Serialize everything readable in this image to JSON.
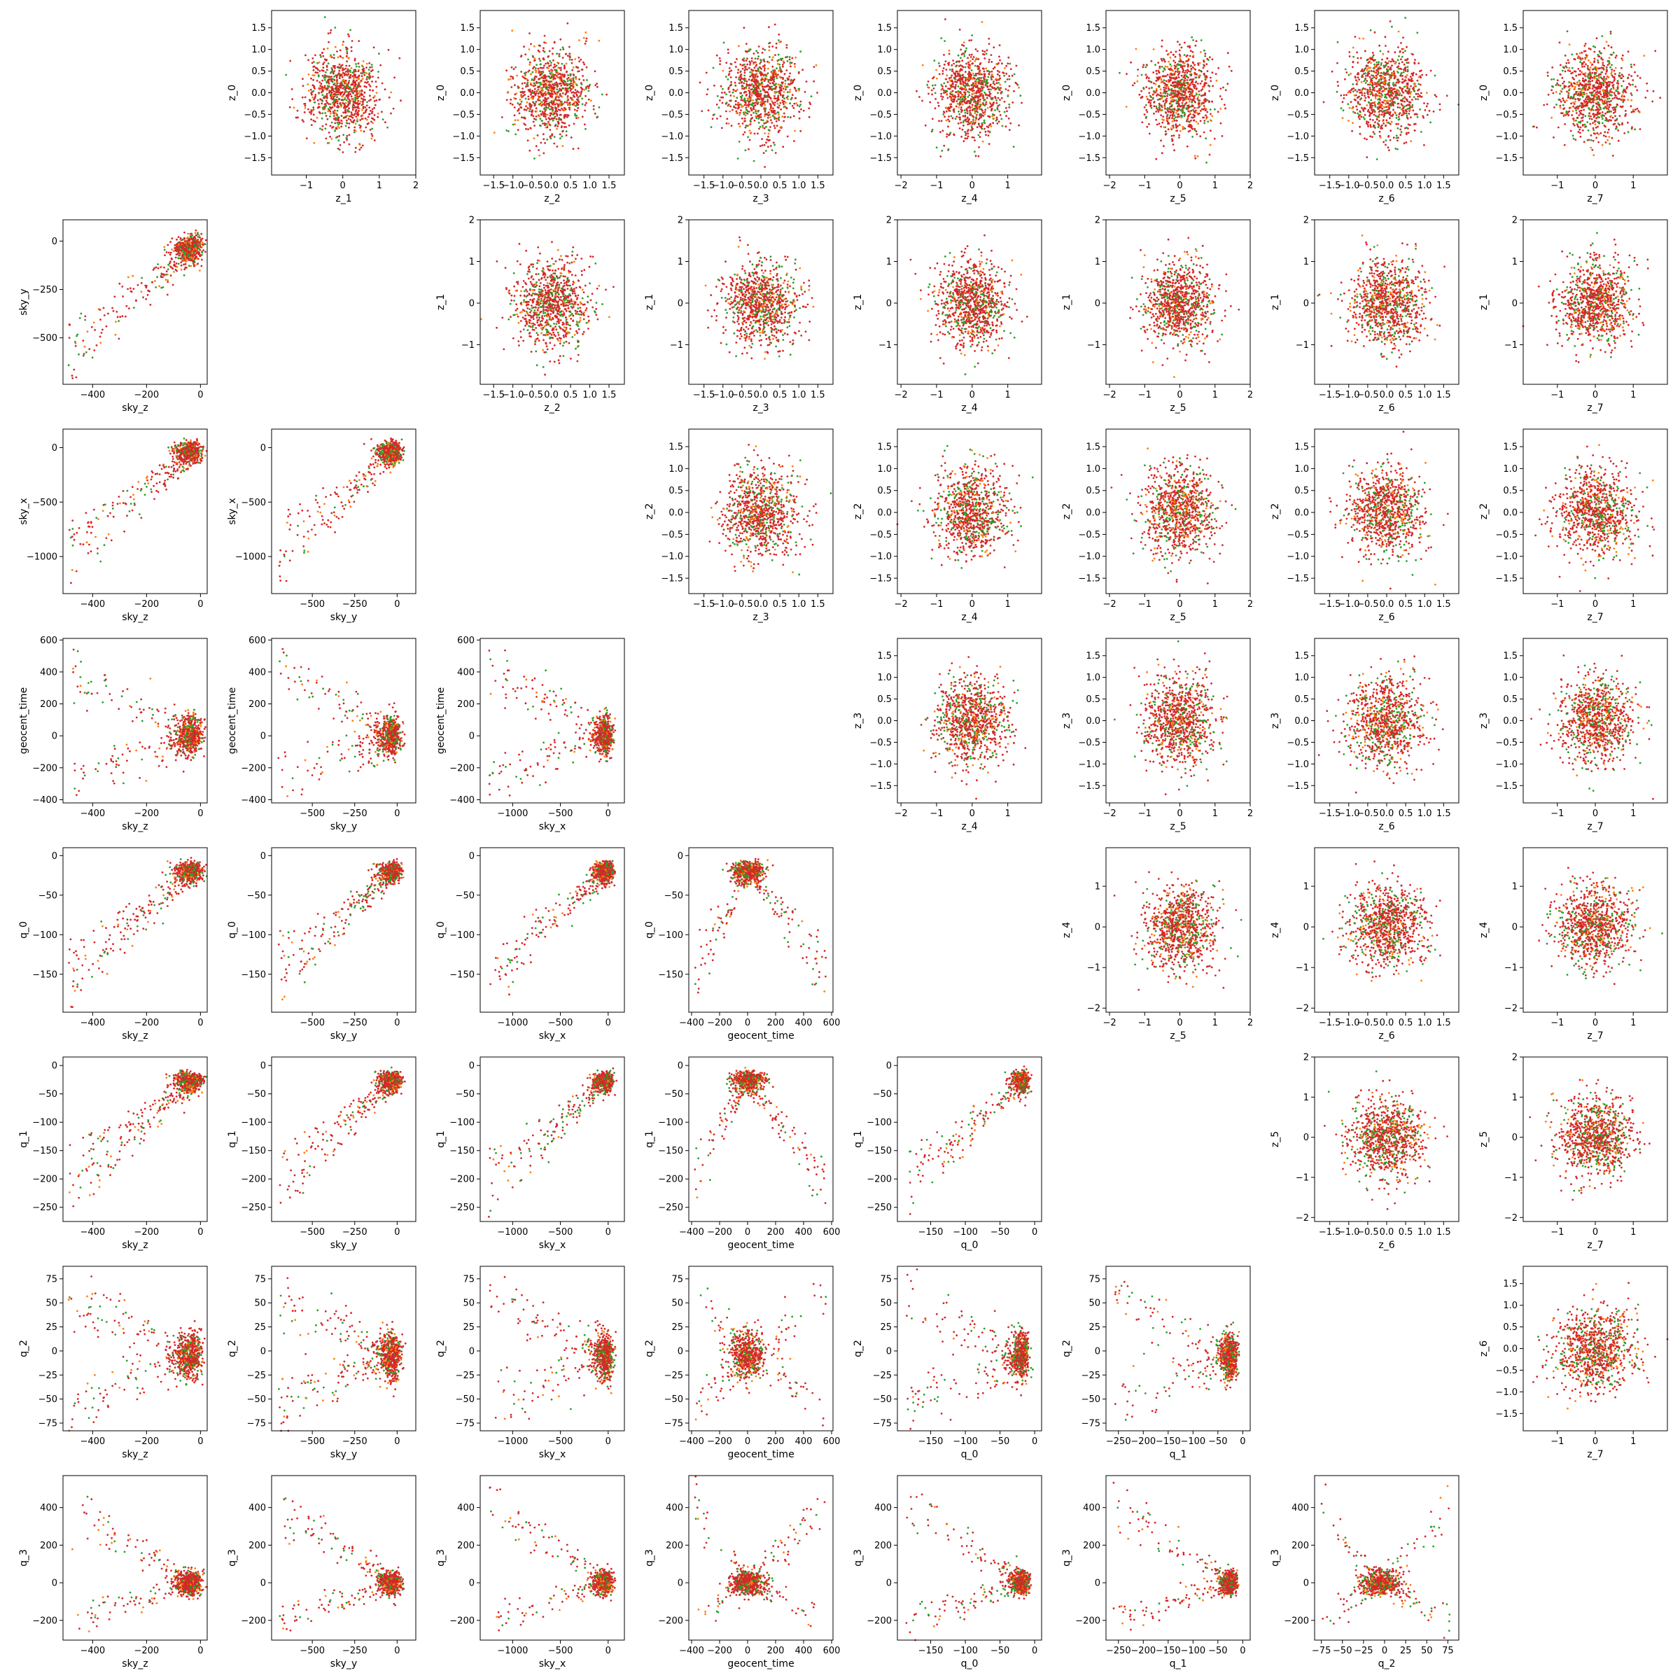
{
  "chart_data": {
    "type": "scatter",
    "layout": "pair-plot-matrix",
    "colors": {
      "series_a": "#2ca02c",
      "series_b": "#ff7f0e",
      "series_c": "#d62728"
    },
    "axes": {
      "z_0": {
        "lim": [
          -1.9,
          1.9
        ],
        "ticks": [
          -1.5,
          -1.0,
          -0.5,
          0.0,
          0.5,
          1.0,
          1.5
        ],
        "labels": [
          "−1.5",
          "−1.0",
          "−0.5",
          "0.0",
          "0.5",
          "1.0",
          "1.5"
        ],
        "kind": "gauss",
        "sd": 0.5
      },
      "z_1": {
        "lim": [
          -1.95,
          2.0
        ],
        "ticks": [
          -1,
          0,
          1,
          2
        ],
        "labels": [
          "−1",
          "0",
          "1",
          "2"
        ],
        "kind": "gauss",
        "sd": 0.5
      },
      "z_2": {
        "lim": [
          -1.85,
          1.9
        ],
        "ticks": [
          -1.5,
          -1.0,
          -0.5,
          0.0,
          0.5,
          1.0,
          1.5
        ],
        "labels": [
          "−1.5",
          "−1.0",
          "−0.5",
          "0.0",
          "0.5",
          "1.0",
          "1.5"
        ],
        "kind": "gauss",
        "sd": 0.5
      },
      "z_3": {
        "lim": [
          -1.9,
          1.9
        ],
        "ticks": [
          -1.5,
          -1.0,
          -0.5,
          0.0,
          0.5,
          1.0,
          1.5
        ],
        "labels": [
          "−1.5",
          "−1.0",
          "−0.5",
          "0.0",
          "0.5",
          "1.0",
          "1.5"
        ],
        "kind": "gauss",
        "sd": 0.5
      },
      "z_4": {
        "lim": [
          -2.1,
          1.95
        ],
        "ticks": [
          -2,
          -1,
          0,
          1
        ],
        "labels": [
          "−2",
          "−1",
          "0",
          "1"
        ],
        "kind": "gauss",
        "sd": 0.5
      },
      "z_5": {
        "lim": [
          -2.1,
          2.0
        ],
        "ticks": [
          -2,
          -1,
          0,
          1,
          2
        ],
        "labels": [
          "−2",
          "−1",
          "0",
          "1",
          "2"
        ],
        "kind": "gauss",
        "sd": 0.5
      },
      "z_6": {
        "lim": [
          -1.9,
          1.9
        ],
        "ticks": [
          -1.5,
          -1.0,
          -0.5,
          0.0,
          0.5,
          1.0,
          1.5
        ],
        "labels": [
          "−1.5",
          "−1.0",
          "−0.5",
          "0.0",
          "0.5",
          "1.0",
          "1.5"
        ],
        "kind": "gauss",
        "sd": 0.5
      },
      "z_7": {
        "lim": [
          -1.9,
          1.9
        ],
        "ticks": [
          -1,
          0,
          1
        ],
        "labels": [
          "−1",
          "0",
          "1"
        ],
        "kind": "gauss",
        "sd": 0.5
      },
      "sky_z": {
        "lim": [
          -510,
          25
        ],
        "ticks": [
          -400,
          -200,
          0
        ],
        "labels": [
          "−400",
          "−200",
          "0"
        ],
        "kind": "skew",
        "center": -20,
        "spread": 60,
        "tail": -490
      },
      "sky_y": {
        "lim": [
          -740,
          110
        ],
        "ticks": [
          -500,
          -250,
          0
        ],
        "labels": [
          "−500",
          "−250",
          "0"
        ],
        "kind": "skew",
        "center": -10,
        "spread": 80,
        "tail": -700
      },
      "sky_x": {
        "lim": [
          -1340,
          170
        ],
        "ticks": [
          -1000,
          -500,
          0
        ],
        "labels": [
          "−1000",
          "−500",
          "0"
        ],
        "kind": "skew",
        "center": 0,
        "spread": 120,
        "tail": -1250
      },
      "geocent_time": {
        "lim": [
          -420,
          610
        ],
        "ticks": [
          -400,
          -200,
          0,
          200,
          400,
          600
        ],
        "labels": [
          "−400",
          "−200",
          "0",
          "200",
          "400",
          "600"
        ],
        "kind": "sym",
        "center": 0,
        "spread": 60,
        "lo": -380,
        "hi": 560
      },
      "q_0": {
        "lim": [
          -198,
          10
        ],
        "ticks": [
          -150,
          -100,
          -50,
          0
        ],
        "labels": [
          "−150",
          "−100",
          "−50",
          "0"
        ],
        "kind": "skew",
        "center": -15,
        "spread": 15,
        "tail": -185
      },
      "q_1": {
        "lim": [
          -275,
          15
        ],
        "ticks": [
          -250,
          -200,
          -150,
          -100,
          -50,
          0
        ],
        "labels": [
          "−250",
          "−200",
          "−150",
          "−100",
          "−50",
          "0"
        ],
        "kind": "skew",
        "center": -20,
        "spread": 20,
        "tail": -260
      },
      "q_2": {
        "lim": [
          -83,
          88
        ],
        "ticks": [
          -75,
          -50,
          -25,
          0,
          25,
          50,
          75
        ],
        "labels": [
          "−75",
          "−50",
          "−25",
          "0",
          "25",
          "50",
          "75"
        ],
        "kind": "sym",
        "center": -5,
        "spread": 12,
        "lo": -75,
        "hi": 78
      },
      "q_3": {
        "lim": [
          -305,
          570
        ],
        "ticks": [
          -200,
          0,
          200,
          400
        ],
        "labels": [
          "−200",
          "0",
          "200",
          "400"
        ],
        "kind": "sym",
        "center": 0,
        "spread": 30,
        "lo": -280,
        "hi": 540
      }
    },
    "col_vars": [
      "sky_z",
      "sky_y",
      "sky_x",
      "geocent_time",
      "q_0",
      "q_1",
      "q_2",
      "z_1",
      "z_2",
      "z_3",
      "z_4",
      "z_5",
      "z_6",
      "z_7"
    ],
    "row_vars": [
      "z_0",
      "sky_y",
      "sky_x",
      "geocent_time",
      "q_0",
      "q_1",
      "q_2",
      "q_3"
    ],
    "panels": [
      {
        "row": 0,
        "col": 1,
        "x": "z_1",
        "y": "z_0"
      },
      {
        "row": 0,
        "col": 2,
        "x": "z_2",
        "y": "z_0"
      },
      {
        "row": 0,
        "col": 3,
        "x": "z_3",
        "y": "z_0"
      },
      {
        "row": 0,
        "col": 4,
        "x": "z_4",
        "y": "z_0"
      },
      {
        "row": 0,
        "col": 5,
        "x": "z_5",
        "y": "z_0"
      },
      {
        "row": 0,
        "col": 6,
        "x": "z_6",
        "y": "z_0"
      },
      {
        "row": 0,
        "col": 7,
        "x": "z_7",
        "y": "z_0"
      },
      {
        "row": 1,
        "col": 0,
        "x": "sky_z",
        "y": "sky_y"
      },
      {
        "row": 1,
        "col": 2,
        "x": "z_2",
        "y": "z_1"
      },
      {
        "row": 1,
        "col": 3,
        "x": "z_3",
        "y": "z_1"
      },
      {
        "row": 1,
        "col": 4,
        "x": "z_4",
        "y": "z_1"
      },
      {
        "row": 1,
        "col": 5,
        "x": "z_5",
        "y": "z_1"
      },
      {
        "row": 1,
        "col": 6,
        "x": "z_6",
        "y": "z_1"
      },
      {
        "row": 1,
        "col": 7,
        "x": "z_7",
        "y": "z_1"
      },
      {
        "row": 2,
        "col": 0,
        "x": "sky_z",
        "y": "sky_x"
      },
      {
        "row": 2,
        "col": 1,
        "x": "sky_y",
        "y": "sky_x"
      },
      {
        "row": 2,
        "col": 3,
        "x": "z_3",
        "y": "z_2"
      },
      {
        "row": 2,
        "col": 4,
        "x": "z_4",
        "y": "z_2"
      },
      {
        "row": 2,
        "col": 5,
        "x": "z_5",
        "y": "z_2"
      },
      {
        "row": 2,
        "col": 6,
        "x": "z_6",
        "y": "z_2"
      },
      {
        "row": 2,
        "col": 7,
        "x": "z_7",
        "y": "z_2"
      },
      {
        "row": 3,
        "col": 0,
        "x": "sky_z",
        "y": "geocent_time"
      },
      {
        "row": 3,
        "col": 1,
        "x": "sky_y",
        "y": "geocent_time"
      },
      {
        "row": 3,
        "col": 2,
        "x": "sky_x",
        "y": "geocent_time"
      },
      {
        "row": 3,
        "col": 4,
        "x": "z_4",
        "y": "z_3"
      },
      {
        "row": 3,
        "col": 5,
        "x": "z_5",
        "y": "z_3"
      },
      {
        "row": 3,
        "col": 6,
        "x": "z_6",
        "y": "z_3"
      },
      {
        "row": 3,
        "col": 7,
        "x": "z_7",
        "y": "z_3"
      },
      {
        "row": 4,
        "col": 0,
        "x": "sky_z",
        "y": "q_0"
      },
      {
        "row": 4,
        "col": 1,
        "x": "sky_y",
        "y": "q_0"
      },
      {
        "row": 4,
        "col": 2,
        "x": "sky_x",
        "y": "q_0"
      },
      {
        "row": 4,
        "col": 3,
        "x": "geocent_time",
        "y": "q_0"
      },
      {
        "row": 4,
        "col": 5,
        "x": "z_5",
        "y": "z_4"
      },
      {
        "row": 4,
        "col": 6,
        "x": "z_6",
        "y": "z_4"
      },
      {
        "row": 4,
        "col": 7,
        "x": "z_7",
        "y": "z_4"
      },
      {
        "row": 5,
        "col": 0,
        "x": "sky_z",
        "y": "q_1"
      },
      {
        "row": 5,
        "col": 1,
        "x": "sky_y",
        "y": "q_1"
      },
      {
        "row": 5,
        "col": 2,
        "x": "sky_x",
        "y": "q_1"
      },
      {
        "row": 5,
        "col": 3,
        "x": "geocent_time",
        "y": "q_1"
      },
      {
        "row": 5,
        "col": 4,
        "x": "q_0",
        "y": "q_1"
      },
      {
        "row": 5,
        "col": 6,
        "x": "z_6",
        "y": "z_5"
      },
      {
        "row": 5,
        "col": 7,
        "x": "z_7",
        "y": "z_5"
      },
      {
        "row": 6,
        "col": 0,
        "x": "sky_z",
        "y": "q_2"
      },
      {
        "row": 6,
        "col": 1,
        "x": "sky_y",
        "y": "q_2"
      },
      {
        "row": 6,
        "col": 2,
        "x": "sky_x",
        "y": "q_2"
      },
      {
        "row": 6,
        "col": 3,
        "x": "geocent_time",
        "y": "q_2"
      },
      {
        "row": 6,
        "col": 4,
        "x": "q_0",
        "y": "q_2"
      },
      {
        "row": 6,
        "col": 5,
        "x": "q_1",
        "y": "q_2"
      },
      {
        "row": 6,
        "col": 7,
        "x": "z_7",
        "y": "z_6"
      },
      {
        "row": 7,
        "col": 0,
        "x": "sky_z",
        "y": "q_3"
      },
      {
        "row": 7,
        "col": 1,
        "x": "sky_y",
        "y": "q_3"
      },
      {
        "row": 7,
        "col": 2,
        "x": "sky_x",
        "y": "q_3"
      },
      {
        "row": 7,
        "col": 3,
        "x": "geocent_time",
        "y": "q_3"
      },
      {
        "row": 7,
        "col": 4,
        "x": "q_0",
        "y": "q_3"
      },
      {
        "row": 7,
        "col": 5,
        "x": "q_1",
        "y": "q_3"
      },
      {
        "row": 7,
        "col": 6,
        "x": "q_2",
        "y": "q_3"
      }
    ]
  }
}
